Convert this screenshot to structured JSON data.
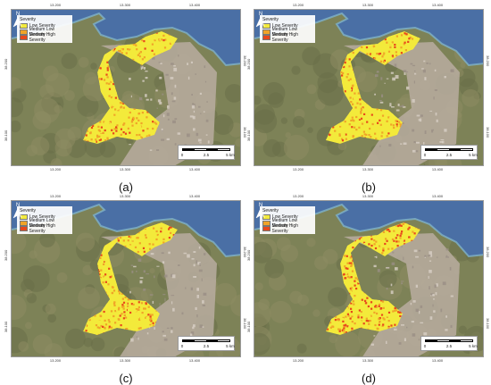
{
  "legend": {
    "title": "Severity",
    "items": [
      {
        "label": "Low Severity",
        "color": "#f3ea3b"
      },
      {
        "label": "Medium Low Severity",
        "color": "#f0a428"
      },
      {
        "label": "Medium High Severity",
        "color": "#e8481c"
      }
    ]
  },
  "axes": {
    "x_ticks": [
      "13.200",
      "13.300",
      "13.400"
    ],
    "y_ticks": [
      "38.200",
      "38.100"
    ]
  },
  "scalebar": {
    "labels": [
      "0",
      "2.5",
      "5 km"
    ]
  },
  "north_label": "N",
  "colors": {
    "sea": "#4a6fa5",
    "land": "#7d8257",
    "urban": "#b9ada0"
  },
  "panels": [
    {
      "caption": "(a)",
      "mix": [
        0.55,
        0.35,
        0.1
      ]
    },
    {
      "caption": "(b)",
      "mix": [
        0.45,
        0.37,
        0.18
      ]
    },
    {
      "caption": "(c)",
      "mix": [
        0.5,
        0.38,
        0.12
      ]
    },
    {
      "caption": "(d)",
      "mix": [
        0.3,
        0.3,
        0.4
      ]
    }
  ]
}
